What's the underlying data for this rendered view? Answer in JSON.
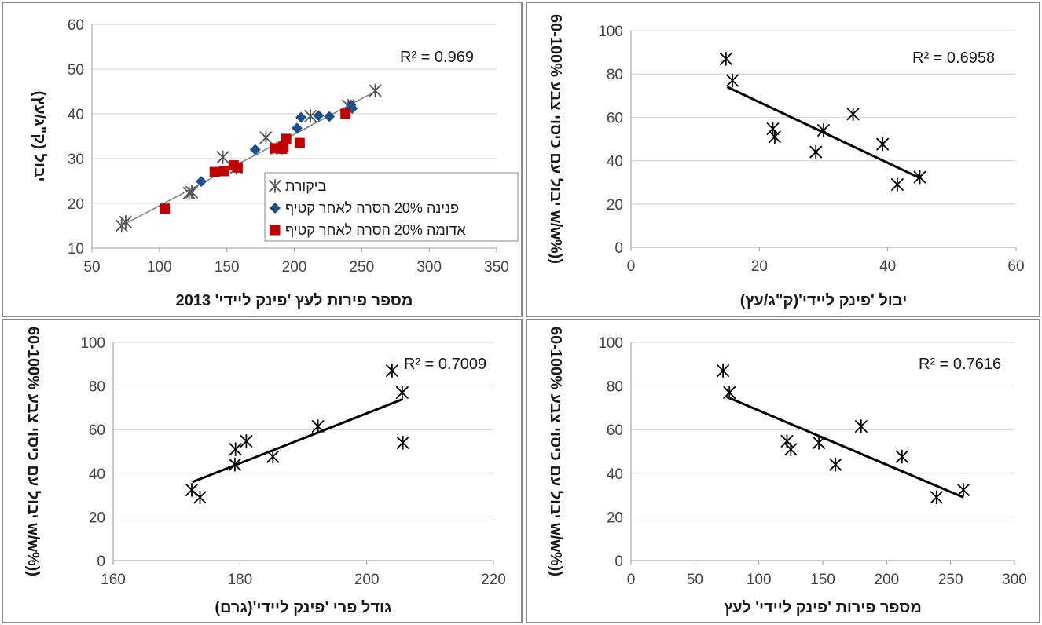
{
  "chart_data": [
    {
      "type": "scatter",
      "xlabel": "מספר פירות לעץ 'פינק ליידי' 2013",
      "ylabel": "יבול (ק\"ג/עץ)",
      "xlim": [
        50,
        350
      ],
      "xticks": [
        50,
        100,
        150,
        200,
        250,
        300,
        350
      ],
      "ylim": [
        10,
        60
      ],
      "yticks": [
        10,
        20,
        30,
        40,
        50,
        60
      ],
      "grid": "horizontal",
      "r2": "R² = 0.969",
      "trendline": {
        "x": [
          72,
          260
        ],
        "y": [
          15.0,
          45.0
        ],
        "color": "#7f7f7f",
        "width": 1.5
      },
      "legend_position": "bottom-right",
      "series": [
        {
          "name": "ביקורת",
          "marker": "asterisk",
          "color": "#555555",
          "points": [
            [
              72,
              15
            ],
            [
              75,
              15.8
            ],
            [
              122,
              22.3
            ],
            [
              124,
              22.5
            ],
            [
              147,
              30.3
            ],
            [
              157,
              28
            ],
            [
              179,
              34.7
            ],
            [
              187,
              32.3
            ],
            [
              212,
              39.5
            ],
            [
              240,
              41.8
            ],
            [
              260,
              45.2
            ]
          ]
        },
        {
          "name": "פנינה 20% הסרה לאחר קטיף",
          "marker": "diamond",
          "color": "#1f4e8c",
          "points": [
            [
              131,
              24.9
            ],
            [
              171,
              32
            ],
            [
              202,
              36.8
            ],
            [
              205,
              39.2
            ],
            [
              218,
              39.6
            ],
            [
              226,
              39.4
            ],
            [
              242,
              42
            ],
            [
              243,
              41.2
            ]
          ]
        },
        {
          "name": "אדומה 20% הסרה לאחר קטיף",
          "marker": "square",
          "color": "#c00000",
          "points": [
            [
              104,
              18.8
            ],
            [
              141,
              27
            ],
            [
              148,
              27.2
            ],
            [
              155,
              28.5
            ],
            [
              158,
              28
            ],
            [
              186,
              32.3
            ],
            [
              191,
              32.2
            ],
            [
              192,
              32.7
            ],
            [
              194,
              34.4
            ],
            [
              204,
              33.5
            ],
            [
              238,
              40
            ]
          ]
        }
      ]
    },
    {
      "type": "scatter",
      "xlabel": "יבול 'פינק ליידי'(ק\"ג/עץ)",
      "ylabel": "יבול עם כיסוי צבע 60-100% w/w%))",
      "xlim": [
        0,
        60
      ],
      "xticks": [
        0,
        20,
        40,
        60
      ],
      "ylim": [
        0,
        100
      ],
      "yticks": [
        0,
        20,
        40,
        60,
        80,
        100
      ],
      "grid": "horizontal",
      "r2": "R² = 0.6958",
      "trendline": {
        "x": [
          15,
          45
        ],
        "y": [
          74,
          32
        ],
        "color": "#000000",
        "width": 3
      },
      "series": [
        {
          "marker": "asterisk",
          "color": "#000000",
          "points": [
            [
              14.8,
              87
            ],
            [
              15.8,
              77
            ],
            [
              22.1,
              54.7
            ],
            [
              22.4,
              51
            ],
            [
              28.8,
              44
            ],
            [
              30,
              54
            ],
            [
              34.6,
              61.5
            ],
            [
              39.2,
              47.6
            ],
            [
              41.5,
              29
            ],
            [
              45,
              32.4
            ]
          ]
        }
      ]
    },
    {
      "type": "scatter",
      "xlabel": "גודל פרי 'פינק ליידי'(גרם)",
      "ylabel": "יבול עם כיסוי צבע 60-100% w/w%))",
      "xlim": [
        160,
        220
      ],
      "xticks": [
        160,
        180,
        200,
        220
      ],
      "ylim": [
        0,
        100
      ],
      "yticks": [
        0,
        20,
        40,
        60,
        80,
        100
      ],
      "grid": "horizontal",
      "r2": "R² = 0.7009",
      "trendline": {
        "x": [
          172.5,
          205.7
        ],
        "y": [
          36,
          74
        ],
        "color": "#000000",
        "width": 3
      },
      "series": [
        {
          "marker": "asterisk",
          "color": "#000000",
          "points": [
            [
              172.4,
              32.4
            ],
            [
              173.7,
              29
            ],
            [
              179.2,
              44
            ],
            [
              179.3,
              51
            ],
            [
              181,
              54.7
            ],
            [
              185.2,
              47.6
            ],
            [
              192.3,
              61.5
            ],
            [
              204,
              87
            ],
            [
              205.6,
              77
            ],
            [
              205.7,
              54
            ]
          ]
        }
      ]
    },
    {
      "type": "scatter",
      "xlabel": "מספר פירות 'פינק ליידי' לעץ",
      "ylabel": "יבול עם כיסוי צבע 60-100% w/w%))",
      "xlim": [
        0,
        300
      ],
      "xticks": [
        0,
        50,
        100,
        150,
        200,
        250,
        300
      ],
      "ylim": [
        0,
        100
      ],
      "yticks": [
        0,
        20,
        40,
        60,
        80,
        100
      ],
      "grid": "horizontal",
      "r2": "R² = 0.7616",
      "trendline": {
        "x": [
          75,
          260
        ],
        "y": [
          75,
          29
        ],
        "color": "#000000",
        "width": 3
      },
      "series": [
        {
          "marker": "asterisk",
          "color": "#000000",
          "points": [
            [
              72,
              87
            ],
            [
              77,
              77
            ],
            [
              122,
              54.7
            ],
            [
              125,
              51
            ],
            [
              147,
              54
            ],
            [
              160,
              44
            ],
            [
              180,
              61.5
            ],
            [
              212,
              47.6
            ],
            [
              239,
              29
            ],
            [
              260,
              32.4
            ]
          ]
        }
      ]
    }
  ]
}
